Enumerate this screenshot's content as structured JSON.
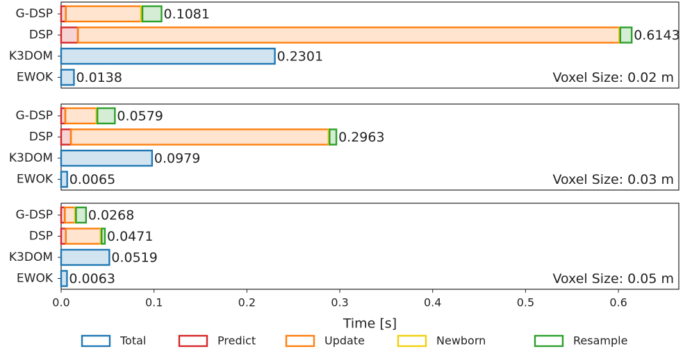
{
  "chart_data": {
    "type": "bar",
    "orientation": "horizontal",
    "stacked": true,
    "categories": [
      "G-DSP",
      "DSP",
      "K3DOM",
      "EWOK"
    ],
    "series": [
      {
        "name": "Total",
        "color": "#1f77b4"
      },
      {
        "name": "Predict",
        "color": "#d62728"
      },
      {
        "name": "Update",
        "color": "#ff7f0e"
      },
      {
        "name": "Newborn",
        "color": "#f2cf0c"
      },
      {
        "name": "Resample",
        "color": "#2ca02c"
      }
    ],
    "panels": [
      {
        "annotation": "Voxel Size: 0.02 m",
        "values": [
          [
            null,
            null,
            0.2301,
            0.0138
          ],
          [
            0.005,
            0.018,
            null,
            null
          ],
          [
            0.081,
            0.583,
            null,
            null
          ],
          [
            0.0015,
            0.001,
            null,
            null
          ],
          [
            0.0206,
            0.0123,
            null,
            null
          ]
        ],
        "totals": [
          0.1081,
          0.6143,
          0.2301,
          0.0138
        ]
      },
      {
        "annotation": "Voxel Size: 0.03 m",
        "values": [
          [
            null,
            null,
            0.0979,
            0.0065
          ],
          [
            0.0045,
            0.0105,
            null,
            null
          ],
          [
            0.0335,
            0.2775,
            null,
            null
          ],
          [
            0.001,
            0.001,
            null,
            null
          ],
          [
            0.0189,
            0.0073,
            null,
            null
          ]
        ],
        "totals": [
          0.0579,
          0.2963,
          0.0979,
          0.0065
        ]
      },
      {
        "annotation": "Voxel Size: 0.05 m",
        "values": [
          [
            null,
            null,
            0.0519,
            0.0063
          ],
          [
            0.004,
            0.005,
            null,
            null
          ],
          [
            0.011,
            0.0376,
            null,
            null
          ],
          [
            0.001,
            0.001,
            null,
            null
          ],
          [
            0.0108,
            0.0035,
            null,
            null
          ]
        ],
        "totals": [
          0.0268,
          0.0471,
          0.0519,
          0.0063
        ]
      }
    ],
    "xlabel": "Time [s]",
    "xlim": [
      0,
      0.665
    ],
    "xticks": [
      {
        "value": 0,
        "label": "0.0"
      },
      0.1,
      0.2,
      0.3,
      0.4,
      0.5,
      0.6
    ],
    "legend": "bottom"
  }
}
